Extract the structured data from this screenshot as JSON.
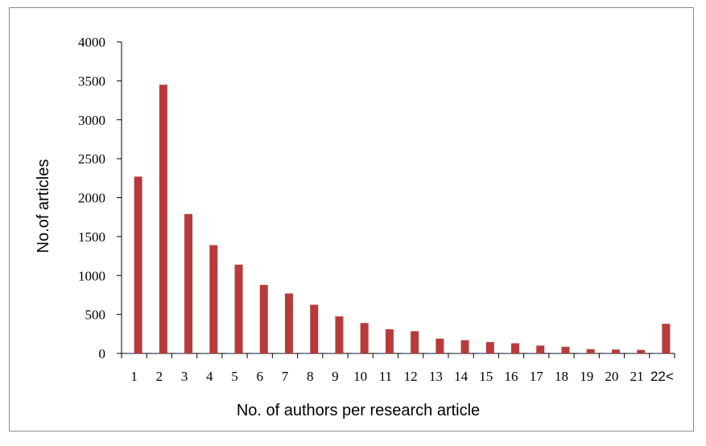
{
  "chart_data": {
    "type": "bar",
    "title": "",
    "xlabel": "No. of authors per research article",
    "ylabel": "No.of articles",
    "ylim": [
      0,
      4000
    ],
    "yticks": [
      0,
      500,
      1000,
      1500,
      2000,
      2500,
      3000,
      3500,
      4000
    ],
    "grid": false,
    "categories": [
      "1",
      "2",
      "3",
      "4",
      "5",
      "6",
      "7",
      "8",
      "9",
      "10",
      "11",
      "12",
      "13",
      "14",
      "15",
      "16",
      "17",
      "18",
      "19",
      "20",
      "21",
      "22<"
    ],
    "series": [
      {
        "color": "#2e5597",
        "values": [
          6,
          6,
          6,
          6,
          6,
          6,
          6,
          6,
          6,
          6,
          6,
          6,
          6,
          6,
          6,
          6,
          6,
          6,
          6,
          6,
          6,
          6
        ]
      },
      {
        "color": "#b83b3b",
        "values": [
          2270,
          3450,
          1790,
          1390,
          1140,
          880,
          770,
          625,
          475,
          390,
          310,
          285,
          190,
          170,
          145,
          130,
          100,
          85,
          55,
          50,
          45,
          380
        ]
      }
    ]
  }
}
